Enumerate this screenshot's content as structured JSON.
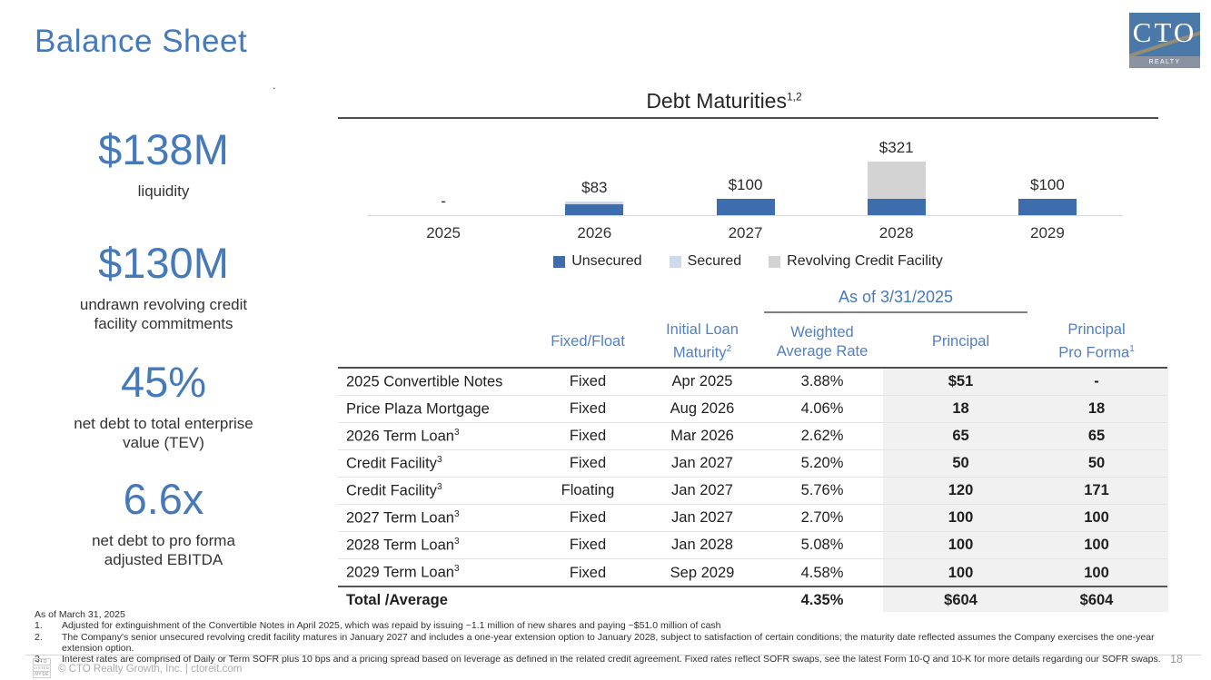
{
  "slide": {
    "title": "Balance Sheet",
    "stray_mark": ".",
    "page_number": "18",
    "copyright": "© CTO Realty Growth, Inc. | ctoreit.com",
    "logo": {
      "text": "CTO",
      "subtext": "REALTY GROWTH"
    },
    "footer_logo": {
      "line1": "CTO",
      "line2": "LISTED",
      "line3": "NYSE"
    }
  },
  "metrics": [
    {
      "value": "$138M",
      "label_line1": "liquidity",
      "label_line2": ""
    },
    {
      "value": "$130M",
      "label_line1": "undrawn revolving credit",
      "label_line2": "facility commitments"
    },
    {
      "value": "45%",
      "label_line1": "net debt to total enterprise",
      "label_line2": "value (TEV)"
    },
    {
      "value": "6.6x",
      "label_line1": "net debt to pro forma",
      "label_line2": "adjusted EBITDA"
    }
  ],
  "chart_data": {
    "type": "bar",
    "stacked": true,
    "title": "Debt Maturities",
    "title_superscript": "1,2",
    "categories": [
      "2025",
      "2026",
      "2027",
      "2028",
      "2029"
    ],
    "series": [
      {
        "name": "Unsecured",
        "color": "#3d6dac",
        "values": [
          0,
          65,
          100,
          100,
          100
        ]
      },
      {
        "name": "Secured",
        "color": "#cdd9ec",
        "values": [
          0,
          18,
          0,
          0,
          0
        ]
      },
      {
        "name": "Revolving Credit Facility",
        "color": "#d3d3d3",
        "values": [
          0,
          0,
          0,
          221,
          0
        ]
      }
    ],
    "totals_labels": [
      "-",
      "$83",
      "$100",
      "$321",
      "$100"
    ],
    "xlabel": "",
    "ylabel": "",
    "ylim": [
      0,
      321
    ],
    "grid": false,
    "legend_position": "bottom"
  },
  "table": {
    "as_of_header": "As of 3/31/2025",
    "headers": {
      "fixed_float": "Fixed/Float",
      "maturity_line1": "Initial Loan",
      "maturity_line2": "Maturity",
      "maturity_sup": "2",
      "rate_line1": "Weighted",
      "rate_line2": "Average Rate",
      "principal": "Principal",
      "proforma_line1": "Principal",
      "proforma_line2": "Pro Forma",
      "proforma_sup": "1"
    },
    "rows": [
      {
        "name": "2025 Convertible Notes",
        "sup": "",
        "fixed_float": "Fixed",
        "maturity": "Apr 2025",
        "rate": "3.88%",
        "principal": "$51",
        "pro_forma": "-"
      },
      {
        "name": "Price Plaza Mortgage",
        "sup": "",
        "fixed_float": "Fixed",
        "maturity": "Aug 2026",
        "rate": "4.06%",
        "principal": "18",
        "pro_forma": "18"
      },
      {
        "name": "2026 Term Loan",
        "sup": "3",
        "fixed_float": "Fixed",
        "maturity": "Mar 2026",
        "rate": "2.62%",
        "principal": "65",
        "pro_forma": "65"
      },
      {
        "name": "Credit Facility",
        "sup": "3",
        "fixed_float": "Fixed",
        "maturity": "Jan 2027",
        "rate": "5.20%",
        "principal": "50",
        "pro_forma": "50"
      },
      {
        "name": "Credit Facility",
        "sup": "3",
        "fixed_float": "Floating",
        "maturity": "Jan 2027",
        "rate": "5.76%",
        "principal": "120",
        "pro_forma": "171"
      },
      {
        "name": "2027 Term Loan",
        "sup": "3",
        "fixed_float": "Fixed",
        "maturity": "Jan 2027",
        "rate": "2.70%",
        "principal": "100",
        "pro_forma": "100"
      },
      {
        "name": "2028 Term Loan",
        "sup": "3",
        "fixed_float": "Fixed",
        "maturity": "Jan 2028",
        "rate": "5.08%",
        "principal": "100",
        "pro_forma": "100"
      },
      {
        "name": "2029 Term Loan",
        "sup": "3",
        "fixed_float": "Fixed",
        "maturity": "Sep 2029",
        "rate": "4.58%",
        "principal": "100",
        "pro_forma": "100"
      }
    ],
    "total_row": {
      "label": "Total /Average",
      "rate": "4.35%",
      "principal": "$604",
      "pro_forma": "$604"
    }
  },
  "footnotes": {
    "as_of": "As of March 31, 2025",
    "items": [
      {
        "num": "1.",
        "text": "Adjusted for extinguishment of the Convertible Notes in April 2025, which was repaid by issuing ~1.1 million of new shares and paying ~$51.0 million of cash"
      },
      {
        "num": "2.",
        "text": "The Company's senior unsecured revolving credit facility matures in January 2027 and includes a one-year extension option to January 2028, subject to satisfaction of certain conditions; the maturity date reflected assumes the Company exercises the one-year extension option."
      },
      {
        "num": "3.",
        "text": "Interest rates are comprised of Daily or Term SOFR plus 10 bps and a pricing spread based on leverage as defined in the related credit agreement.  Fixed rates reflect SOFR swaps, see the latest Form 10-Q and 10-K for more details regarding our SOFR swaps."
      }
    ]
  }
}
